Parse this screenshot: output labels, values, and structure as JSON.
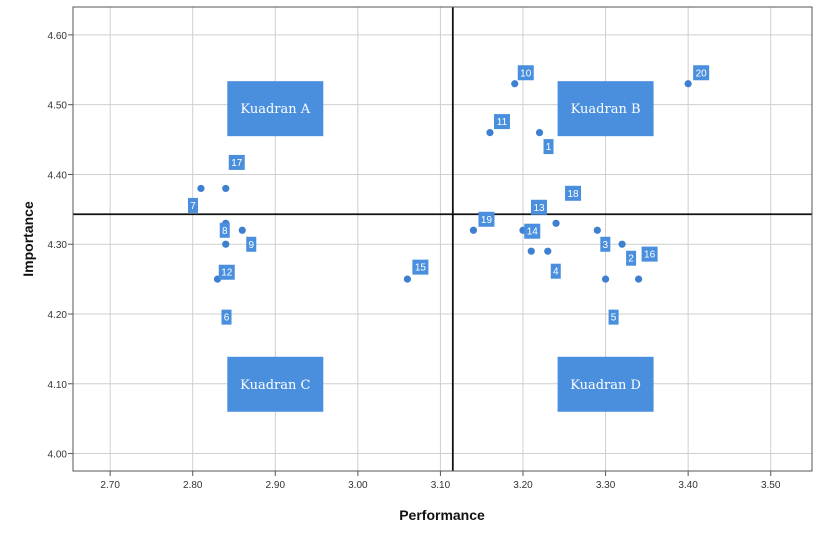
{
  "chart_data": {
    "type": "scatter",
    "title": "",
    "xlabel": "Performance",
    "ylabel": "Importance",
    "xlim": [
      2.655,
      3.55
    ],
    "ylim": [
      3.975,
      4.64
    ],
    "x_ticks": [
      "2.70",
      "2.80",
      "2.90",
      "3.00",
      "3.10",
      "3.20",
      "3.30",
      "3.40",
      "3.50"
    ],
    "y_ticks": [
      "4.00",
      "4.10",
      "4.20",
      "4.30",
      "4.40",
      "4.50",
      "4.60"
    ],
    "grid": true,
    "reference_lines": {
      "x": 3.115,
      "y": 4.343
    },
    "quadrants": [
      {
        "label": "Kuadran A",
        "x": 2.9,
        "y": 4.495
      },
      {
        "label": "Kuadran B",
        "x": 3.3,
        "y": 4.495
      },
      {
        "label": "Kuadran C",
        "x": 2.9,
        "y": 4.1
      },
      {
        "label": "Kuadran D",
        "x": 3.3,
        "y": 4.1
      }
    ],
    "points": [
      {
        "label": "1",
        "x": 3.22,
        "y": 4.46
      },
      {
        "label": "2",
        "x": 3.32,
        "y": 4.3
      },
      {
        "label": "3",
        "x": 3.29,
        "y": 4.32
      },
      {
        "label": "4",
        "x": 3.23,
        "y": 4.29
      },
      {
        "label": "5",
        "x": 3.3,
        "y": 4.25
      },
      {
        "label": "6",
        "x": 2.83,
        "y": 4.25
      },
      {
        "label": "7",
        "x": 2.81,
        "y": 4.38
      },
      {
        "label": "8",
        "x": 2.84,
        "y": 4.33
      },
      {
        "label": "9",
        "x": 2.86,
        "y": 4.32
      },
      {
        "label": "10",
        "x": 3.19,
        "y": 4.53
      },
      {
        "label": "11",
        "x": 3.16,
        "y": 4.46
      },
      {
        "label": "12",
        "x": 2.84,
        "y": 4.3
      },
      {
        "label": "13",
        "x": 3.2,
        "y": 4.32
      },
      {
        "label": "14",
        "x": 3.21,
        "y": 4.29
      },
      {
        "label": "15",
        "x": 3.06,
        "y": 4.25
      },
      {
        "label": "16",
        "x": 3.34,
        "y": 4.25
      },
      {
        "label": "17",
        "x": 2.84,
        "y": 4.38
      },
      {
        "label": "18",
        "x": 3.24,
        "y": 4.33
      },
      {
        "label": "19",
        "x": 3.14,
        "y": 4.32
      },
      {
        "label": "20",
        "x": 3.4,
        "y": 4.53
      }
    ]
  }
}
